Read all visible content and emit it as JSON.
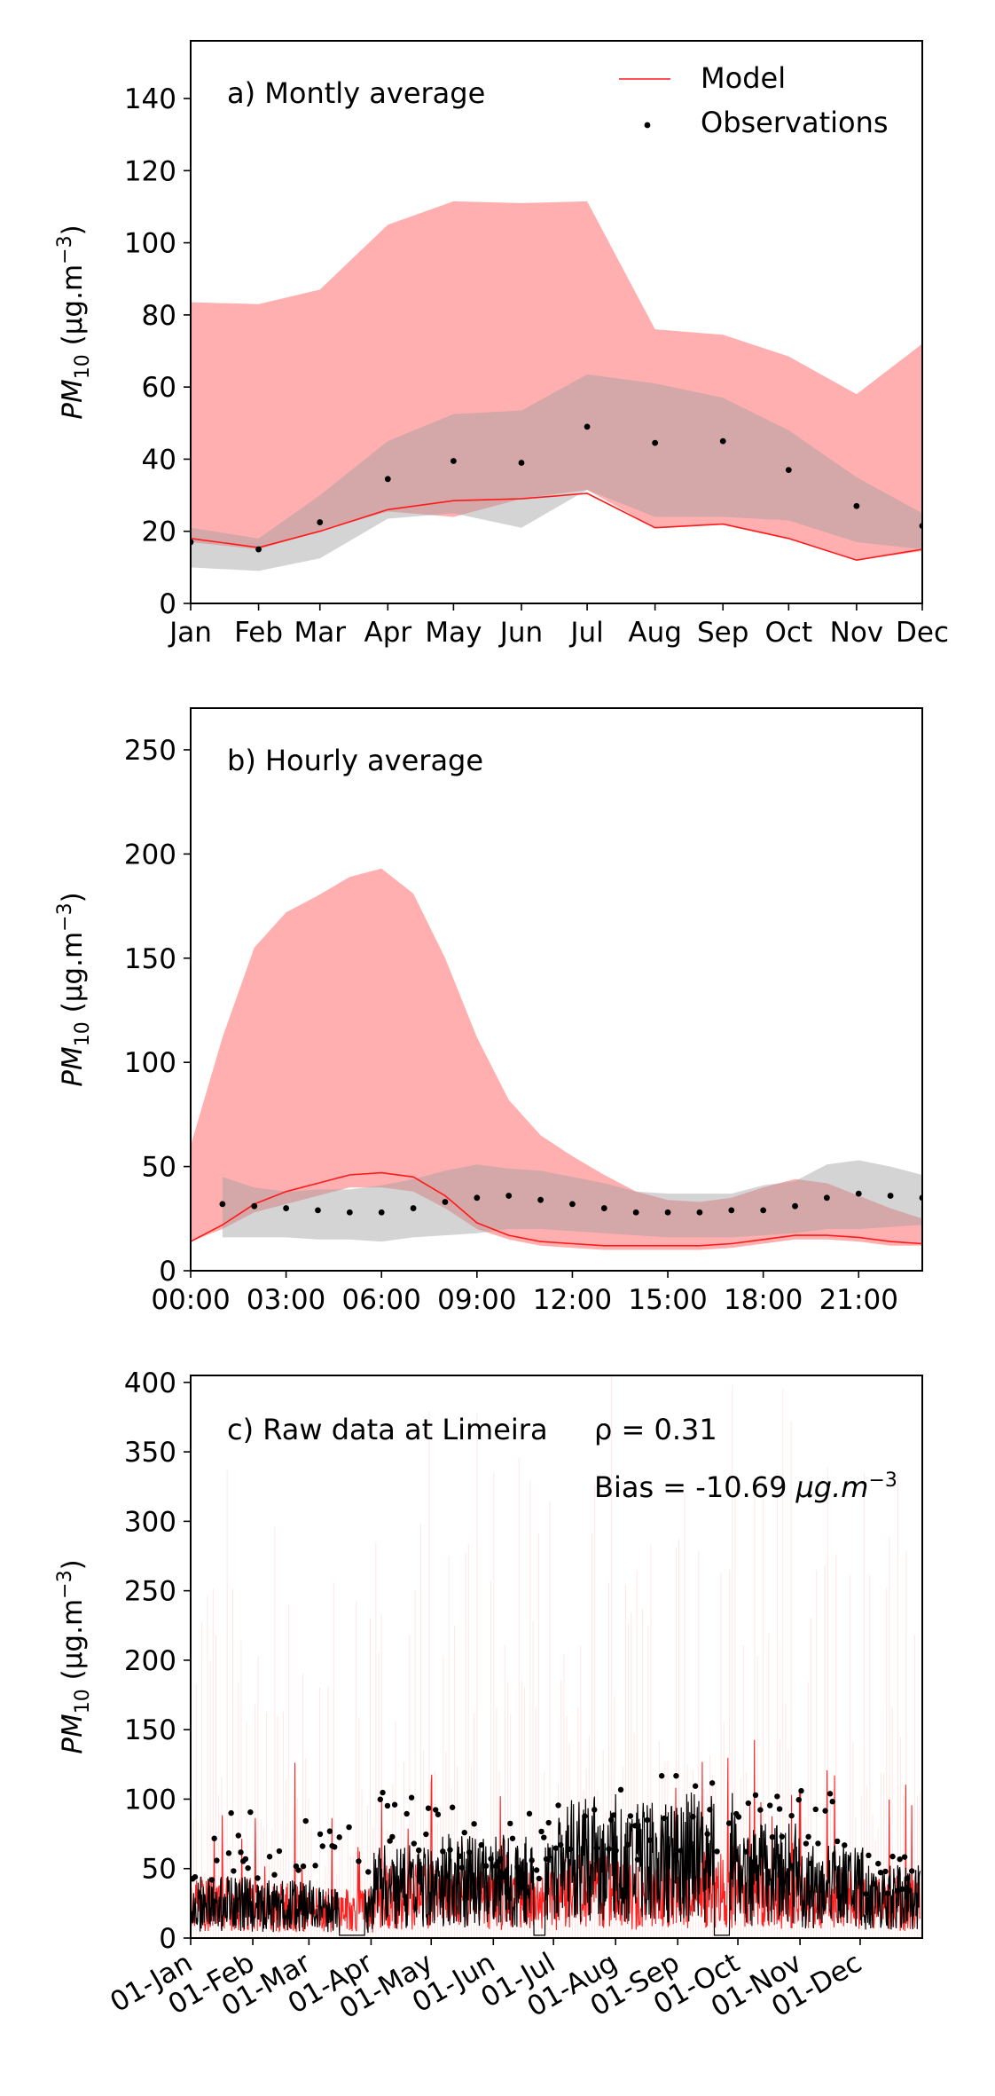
{
  "chart_data": [
    {
      "type": "line",
      "panel_label": "a) Montly average",
      "ylabel": "PM10 (μg.m⁻³)",
      "ylabel_parts": {
        "base": "PM",
        "sub": "10",
        "unit": " (μg.m",
        "sup": "−3",
        "close": ")"
      },
      "x": [
        "Jan",
        "Feb",
        "Mar",
        "Apr",
        "May",
        "Jun",
        "Jul",
        "Aug",
        "Sep",
        "Oct",
        "Nov",
        "Dec"
      ],
      "x_days": [
        1,
        32,
        60,
        91,
        121,
        152,
        182,
        213,
        244,
        274,
        305,
        335
      ],
      "xlim": [
        1,
        335
      ],
      "ylim": [
        0,
        156
      ],
      "yticks": [
        0,
        20,
        40,
        60,
        80,
        100,
        120,
        140
      ],
      "legend": {
        "position": "top-right",
        "entries": [
          "Model",
          "Observations"
        ]
      },
      "series": [
        {
          "name": "Model",
          "values": [
            18,
            15.5,
            20,
            26,
            28.5,
            29,
            30.5,
            21,
            22,
            18,
            12,
            15
          ]
        },
        {
          "name": "Observations",
          "values": [
            17,
            15,
            22.5,
            34.5,
            39.5,
            39,
            49,
            44.5,
            45,
            37,
            27,
            21.5
          ]
        }
      ],
      "model_band": {
        "upper": [
          83.5,
          83,
          87,
          105,
          111.5,
          111,
          111.5,
          76,
          74.5,
          68.5,
          58,
          72
        ],
        "lower": [
          17,
          15,
          20,
          25.5,
          24,
          29,
          31.5,
          21,
          22,
          18,
          12,
          14.5
        ]
      },
      "obs_band": {
        "upper": [
          21,
          18,
          30,
          45,
          52.5,
          53.5,
          63.5,
          61,
          57,
          48,
          35,
          25
        ],
        "lower": [
          10,
          9,
          12.5,
          23.5,
          25,
          21,
          31.5,
          24,
          24,
          23,
          17,
          15
        ]
      }
    },
    {
      "type": "line",
      "panel_label": "b) Hourly average",
      "ylabel": "PM10 (μg.m⁻³)",
      "ylabel_parts": {
        "base": "PM",
        "sub": "10",
        "unit": " (μg.m",
        "sup": "−3",
        "close": ")"
      },
      "xticks": [
        "00:00",
        "03:00",
        "06:00",
        "09:00",
        "12:00",
        "15:00",
        "18:00",
        "21:00"
      ],
      "xtick_hours": [
        0,
        3,
        6,
        9,
        12,
        15,
        18,
        21
      ],
      "xlim": [
        0,
        23
      ],
      "ylim": [
        0,
        270
      ],
      "yticks": [
        0,
        50,
        100,
        150,
        200,
        250
      ],
      "model": {
        "hours": [
          0,
          1,
          2,
          3,
          4,
          5,
          6,
          7,
          8,
          9,
          10,
          11,
          12,
          13,
          14,
          15,
          16,
          17,
          18,
          19,
          20,
          21,
          22,
          23
        ],
        "values": [
          14,
          22,
          32,
          38,
          42,
          46,
          47,
          45,
          36,
          23,
          17,
          14,
          13,
          12,
          12,
          12,
          12,
          13,
          15,
          17,
          17,
          16,
          14,
          13
        ],
        "upper": [
          60,
          112,
          155,
          172,
          180,
          189,
          193,
          181,
          150,
          112,
          82,
          65,
          55,
          46,
          38,
          34,
          33,
          35,
          40,
          44,
          42,
          36,
          30,
          25
        ],
        "lower": [
          14,
          20,
          28,
          32,
          36,
          40,
          40,
          38,
          30,
          20,
          15,
          12,
          11,
          10,
          10,
          10,
          10,
          11,
          13,
          15,
          15,
          14,
          12,
          12
        ]
      },
      "observations": {
        "hours": [
          1,
          2,
          3,
          4,
          5,
          6,
          7,
          8,
          9,
          10,
          11,
          12,
          13,
          14,
          15,
          16,
          17,
          18,
          19,
          20,
          21,
          22,
          23
        ],
        "values": [
          32,
          31,
          30,
          29,
          28,
          28,
          30,
          33,
          35,
          36,
          34,
          32,
          30,
          28,
          28,
          28,
          29,
          29,
          31,
          35,
          37,
          36,
          35
        ],
        "upper": [
          45,
          40,
          38,
          39,
          39,
          41,
          44,
          48,
          51,
          49,
          48,
          45,
          42,
          38,
          37,
          37,
          37,
          41,
          43,
          51,
          53,
          50,
          46
        ],
        "lower": [
          16,
          16,
          16,
          15,
          15,
          14,
          16,
          17,
          18,
          20,
          20,
          19,
          18,
          17,
          16,
          16,
          16,
          17,
          18,
          20,
          20,
          21,
          22
        ]
      }
    },
    {
      "type": "line",
      "panel_label": "c) Raw data at Limeira",
      "rho_label": "ρ = 0.31",
      "bias_label": "Bias = -10.69",
      "bias_unit": "μg.m",
      "bias_sup": "−3",
      "ylabel": "PM10 (μg.m⁻³)",
      "ylabel_parts": {
        "base": "PM",
        "sub": "10",
        "unit": " (μg.m",
        "sup": "−3",
        "close": ")"
      },
      "xticks": [
        "01-Jan",
        "01-Feb",
        "01-Mar",
        "01-Apr",
        "01-May",
        "01-Jun",
        "01-Jul",
        "01-Aug",
        "01-Sep",
        "01-Oct",
        "01-Nov",
        "01-Dec"
      ],
      "xtick_days": [
        1,
        32,
        60,
        91,
        121,
        152,
        182,
        213,
        244,
        274,
        305,
        335
      ],
      "xlim": [
        1,
        366
      ],
      "ylim": [
        0,
        405
      ],
      "yticks": [
        0,
        50,
        100,
        150,
        200,
        250,
        300,
        350,
        400
      ],
      "model_level_by_month": [
        25,
        22,
        20,
        30,
        28,
        27,
        35,
        30,
        35,
        30,
        28,
        25
      ],
      "obs_level_by_month": [
        30,
        28,
        25,
        45,
        50,
        50,
        70,
        65,
        70,
        55,
        45,
        35
      ],
      "obs_max_by_month": [
        92,
        90,
        85,
        110,
        95,
        92,
        122,
        122,
        124,
        122,
        114,
        62
      ]
    }
  ]
}
